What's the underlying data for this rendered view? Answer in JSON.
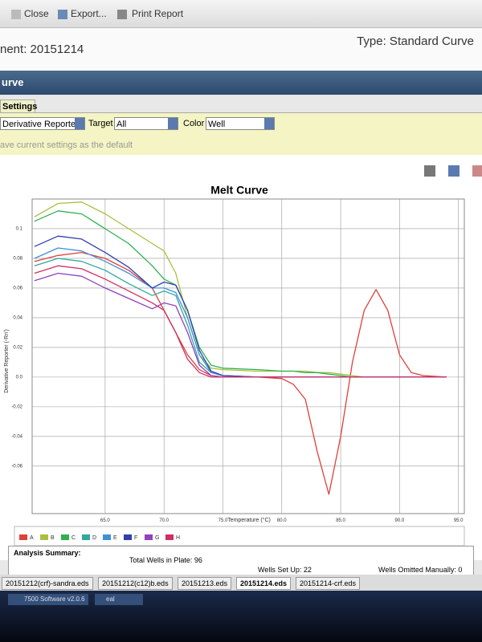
{
  "toolbar": {
    "close": "Close",
    "export": "Export...",
    "print": "Print Report"
  },
  "header": {
    "experiment": "nent: 20151214",
    "type": "Type: Standard Curve"
  },
  "section_title": "urve",
  "settings": {
    "tab": "Settings",
    "plot_type": "Derivative Reporter",
    "target_label": "Target",
    "target": "All",
    "color_label": "Color",
    "color": "Well",
    "save_default": "ave current settings as the default"
  },
  "chart_data": {
    "type": "line",
    "title": "Melt Curve",
    "x_label": "Temperature (°C)",
    "y_label": "Derivative Reporter (-Rn')",
    "x": [
      59,
      61,
      63,
      65,
      67,
      69,
      70,
      71,
      72,
      73,
      74,
      75,
      78,
      80,
      81,
      82,
      83,
      84,
      85,
      86,
      87,
      88,
      89,
      90,
      91,
      92,
      94
    ],
    "xlim": [
      58.8,
      95.5
    ],
    "ylim": [
      -0.092,
      0.12
    ],
    "xticks": [
      {
        "value": 65,
        "label": "65.0"
      },
      {
        "value": 70,
        "label": "70.0"
      },
      {
        "value": 75,
        "label": "75.0"
      },
      {
        "value": 80,
        "label": "80.0"
      },
      {
        "value": 85,
        "label": "85.0"
      },
      {
        "value": 90,
        "label": "90.0"
      },
      {
        "value": 95,
        "label": "95.0"
      }
    ],
    "yticks": [
      0.1,
      0.08,
      0.06,
      0.04,
      0.02,
      {
        "value": 0,
        "label": "0.0"
      },
      -0.02,
      -0.04,
      -0.06
    ],
    "grid": true,
    "series": [
      {
        "name": "A",
        "color": "#e0403a",
        "values": [
          0.078,
          0.082,
          0.084,
          0.08,
          0.072,
          0.06,
          0.045,
          0.03,
          0.015,
          0.005,
          0.001,
          0.0,
          0.0,
          -0.001,
          -0.005,
          -0.015,
          -0.05,
          -0.079,
          -0.04,
          0.01,
          0.045,
          0.059,
          0.045,
          0.015,
          0.003,
          0.001,
          0.0
        ]
      },
      {
        "name": "B",
        "color": "#a8c040",
        "values": [
          0.108,
          0.117,
          0.118,
          0.11,
          0.1,
          0.09,
          0.085,
          0.07,
          0.04,
          0.015,
          0.006,
          0.005,
          0.004,
          0.004,
          0.004,
          0.004,
          0.003,
          0.003,
          0.002,
          0.001,
          0.0,
          0.0,
          0.0,
          0.0,
          0.0,
          0.0,
          0.0
        ]
      },
      {
        "name": "C",
        "color": "#30b050",
        "values": [
          0.105,
          0.112,
          0.11,
          0.1,
          0.09,
          0.075,
          0.066,
          0.062,
          0.045,
          0.02,
          0.008,
          0.006,
          0.005,
          0.004,
          0.004,
          0.003,
          0.003,
          0.002,
          0.001,
          0.0,
          0.0,
          0.0,
          0.0,
          0.0,
          0.0,
          0.0,
          0.0
        ]
      },
      {
        "name": "D",
        "color": "#30a8a0",
        "values": [
          0.075,
          0.08,
          0.078,
          0.072,
          0.063,
          0.055,
          0.058,
          0.055,
          0.035,
          0.01,
          0.003,
          0.001,
          0.0,
          0.0,
          0.0,
          0.0,
          0.0,
          0.0,
          0.0,
          0.0,
          0.0,
          0.0,
          0.0,
          0.0,
          0.0,
          0.0,
          0.0
        ]
      },
      {
        "name": "E",
        "color": "#4090d8",
        "values": [
          0.08,
          0.087,
          0.085,
          0.078,
          0.07,
          0.06,
          0.06,
          0.057,
          0.04,
          0.015,
          0.003,
          0.001,
          0.0,
          0.0,
          0.0,
          0.0,
          0.0,
          0.0,
          0.0,
          0.0,
          0.0,
          0.0,
          0.0,
          0.0,
          0.0,
          0.0,
          0.0
        ]
      },
      {
        "name": "F",
        "color": "#3040b0",
        "values": [
          0.088,
          0.095,
          0.093,
          0.084,
          0.074,
          0.06,
          0.064,
          0.062,
          0.045,
          0.018,
          0.004,
          0.001,
          0.0,
          0.0,
          0.0,
          0.0,
          0.0,
          0.0,
          0.0,
          0.0,
          0.0,
          0.0,
          0.0,
          0.0,
          0.0,
          0.0,
          0.0
        ]
      },
      {
        "name": "G",
        "color": "#9040c0",
        "values": [
          0.065,
          0.07,
          0.068,
          0.06,
          0.053,
          0.046,
          0.05,
          0.048,
          0.03,
          0.008,
          0.001,
          0.0,
          0.0,
          0.0,
          0.0,
          0.0,
          0.0,
          0.0,
          0.0,
          0.0,
          0.0,
          0.0,
          0.0,
          0.0,
          0.0,
          0.0,
          0.0
        ]
      },
      {
        "name": "H",
        "color": "#d03060",
        "values": [
          0.07,
          0.075,
          0.073,
          0.066,
          0.058,
          0.05,
          0.045,
          0.03,
          0.012,
          0.003,
          0.0,
          0.0,
          0.0,
          0.0,
          0.0,
          0.0,
          0.0,
          0.0,
          0.0,
          0.0,
          0.0,
          0.0,
          0.0,
          0.0,
          0.0,
          0.0,
          0.0
        ]
      }
    ]
  },
  "summary": {
    "title": "Analysis Summary:",
    "total_wells": "Total Wells in Plate: 96",
    "wells_set_up": "Wells Set Up: 22",
    "wells_omitted": "Wells Omitted Manually: 0"
  },
  "file_tabs": [
    "20151212(crf)-sandra.eds",
    "20151212(c12)b.eds",
    "20151213.eds",
    "20151214.eds",
    "20151214-crf.eds"
  ],
  "taskbar": {
    "app": "7500 Software v2.0.6",
    "folder": "eal"
  }
}
